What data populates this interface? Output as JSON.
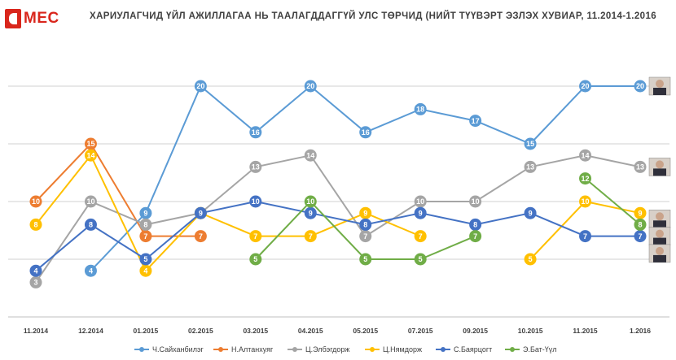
{
  "logo": {
    "text": "MEC"
  },
  "chart_data": {
    "type": "line",
    "title": "ХАРИУЛАГЧИД ҮЙЛ АЖИЛЛАГАА НЬ ТААЛАГДДАГГҮЙ УЛС ТӨРЧИД (НИЙТ ТҮҮВЭРТ ЭЗЛЭХ ХУВИАР, 11.2014-1.2016",
    "xlabel": "",
    "ylabel": "",
    "ylim": [
      0,
      25
    ],
    "grid": true,
    "legend_position": "bottom",
    "categories": [
      "11.2014",
      "12.2014",
      "01.2015",
      "02.2015",
      "03.2015",
      "04.2015",
      "05.2015",
      "07.2015",
      "09.2015",
      "10.2015",
      "11.2015",
      "1.2016"
    ],
    "series": [
      {
        "name": "Ч.Сайханбилэг",
        "color": "#5b9bd5",
        "values": [
          null,
          4,
          9,
          20,
          16,
          20,
          16,
          18,
          17,
          15,
          20,
          20
        ]
      },
      {
        "name": "Н.Алтанхуяг",
        "color": "#ed7d31",
        "values": [
          10,
          15,
          7,
          7,
          null,
          null,
          null,
          null,
          null,
          null,
          null,
          null
        ]
      },
      {
        "name": "Ц.Элбэгдорж",
        "color": "#a5a5a5",
        "values": [
          3,
          10,
          8,
          9,
          13,
          14,
          7,
          10,
          10,
          13,
          14,
          13
        ]
      },
      {
        "name": "Ц.Нямдорж",
        "color": "#ffc000",
        "values": [
          8,
          14,
          4,
          9,
          7,
          7,
          9,
          7,
          null,
          5,
          10,
          9
        ]
      },
      {
        "name": "С.Баярцогт",
        "color": "#4472c4",
        "values": [
          4,
          8,
          5,
          9,
          10,
          9,
          8,
          9,
          8,
          9,
          7,
          7
        ]
      },
      {
        "name": "Э.Бат-Үүл",
        "color": "#70ad47",
        "values": [
          null,
          null,
          null,
          null,
          5,
          10,
          5,
          5,
          7,
          null,
          12,
          8
        ]
      }
    ]
  }
}
